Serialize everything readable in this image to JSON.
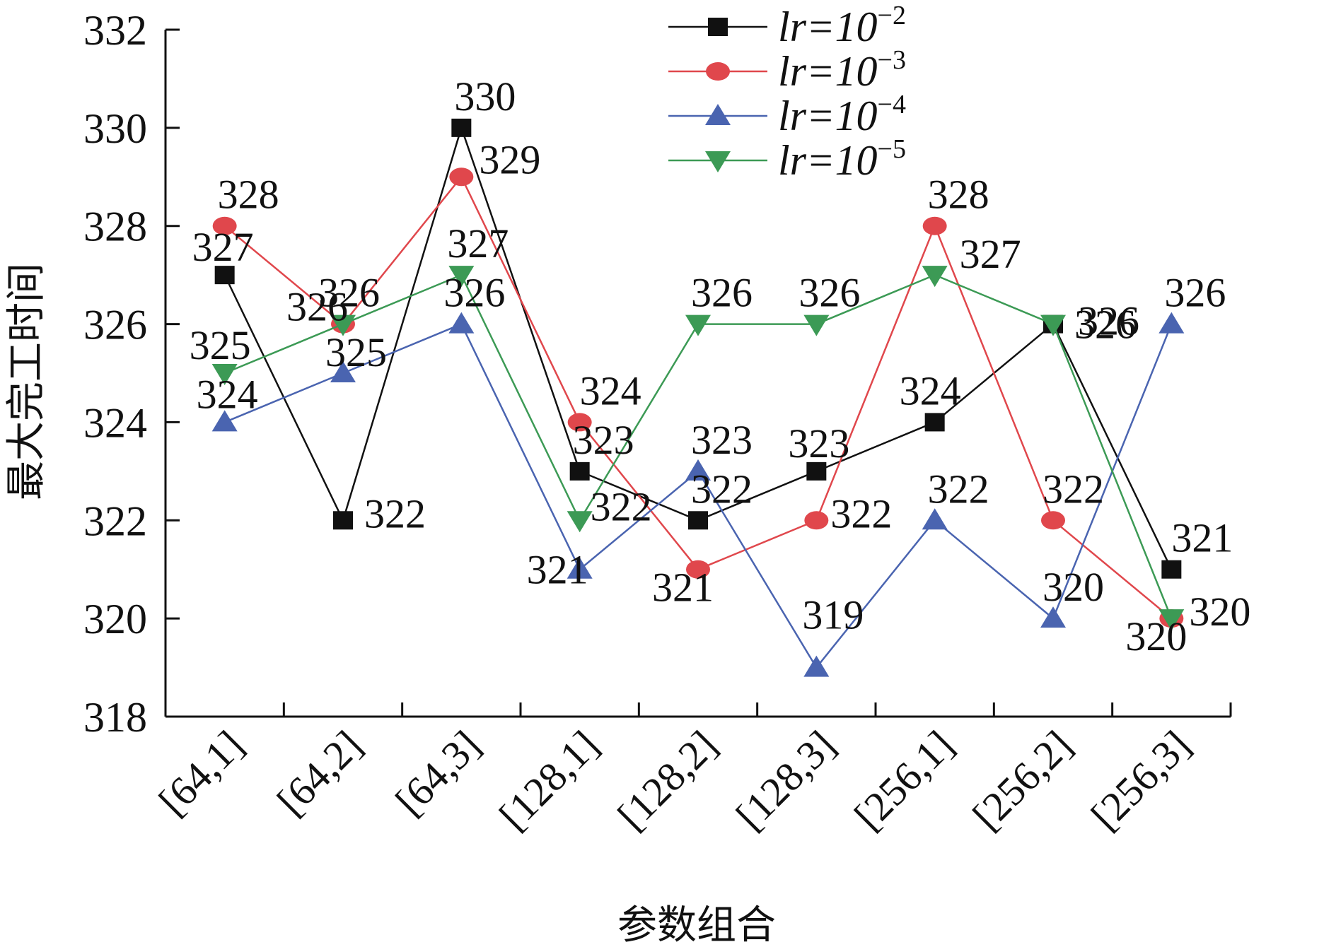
{
  "chart_data": {
    "type": "line",
    "xlabel": "参数组合",
    "ylabel": "最大完工时间",
    "ylim": [
      318,
      332
    ],
    "yticks": [
      318,
      320,
      322,
      324,
      326,
      328,
      330,
      332
    ],
    "categories": [
      "[64,1]",
      "[64,2]",
      "[64,3]",
      "[128,1]",
      "[128,2]",
      "[128,3]",
      "[256,1]",
      "[256,2]",
      "[256,3]"
    ],
    "grid": false,
    "legend_position": "top-center",
    "series": [
      {
        "name": "lr=10−2",
        "legend_base": "lr=10",
        "legend_exp": "−2",
        "color": "#111111",
        "marker": "square",
        "values": [
          327,
          322,
          330,
          323,
          322,
          323,
          324,
          326,
          321
        ]
      },
      {
        "name": "lr=10−3",
        "legend_base": "lr=10",
        "legend_exp": "−3",
        "color": "#e0474c",
        "marker": "circle",
        "values": [
          328,
          326,
          329,
          324,
          321,
          322,
          328,
          322,
          320
        ]
      },
      {
        "name": "lr=10−4",
        "legend_base": "lr=10",
        "legend_exp": "−4",
        "color": "#4a64b0",
        "marker": "triangle-up",
        "values": [
          324,
          325,
          326,
          321,
          323,
          319,
          322,
          320,
          326
        ]
      },
      {
        "name": "lr=10−5",
        "legend_base": "lr=10",
        "legend_exp": "−5",
        "color": "#3c9a55",
        "marker": "triangle-down",
        "values": [
          325,
          326,
          327,
          322,
          326,
          326,
          327,
          326,
          320
        ]
      }
    ]
  }
}
